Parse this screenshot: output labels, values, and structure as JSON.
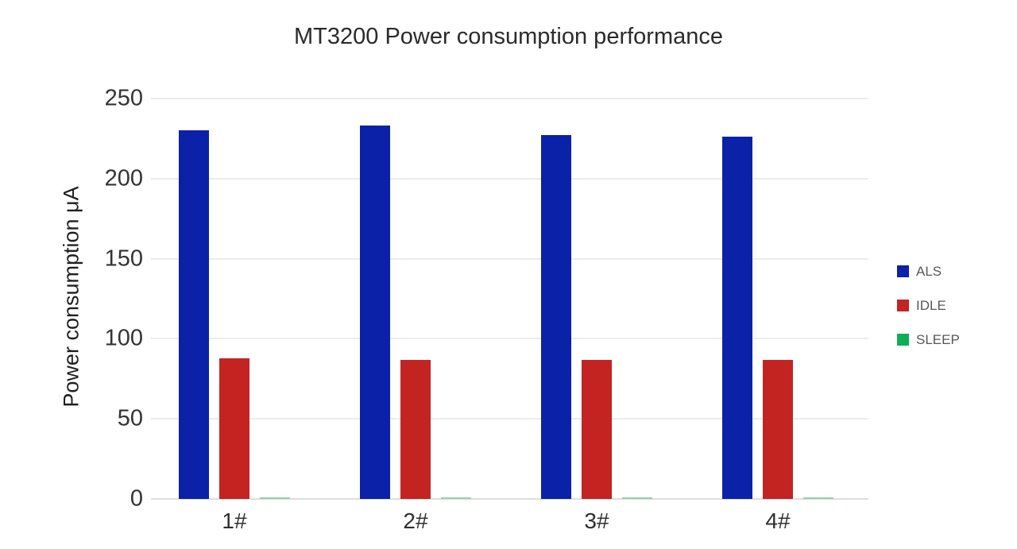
{
  "chart_data": {
    "type": "bar",
    "title": "MT3200 Power consumption performance",
    "xlabel": "",
    "ylabel": "Power consumption μA",
    "categories": [
      "1#",
      "2#",
      "3#",
      "4#"
    ],
    "series": [
      {
        "name": "ALS",
        "color": "#0b21a8",
        "values": [
          230,
          233,
          227,
          226
        ]
      },
      {
        "name": "IDLE",
        "color": "#c32422",
        "values": [
          88,
          87,
          87,
          87
        ]
      },
      {
        "name": "SLEEP",
        "color": "#0fae54",
        "bar_color": "#90d5ae",
        "values": [
          1,
          1,
          1,
          1
        ]
      }
    ],
    "ylim": [
      0,
      250
    ],
    "yticks": [
      0,
      50,
      100,
      150,
      200,
      250
    ],
    "grid": "horizontal",
    "legend_position": "right"
  }
}
